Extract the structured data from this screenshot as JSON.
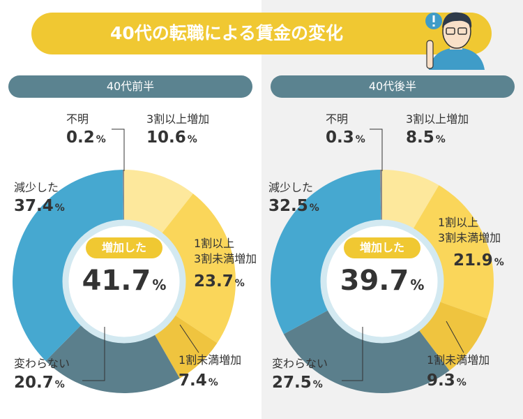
{
  "title": "40代の転職による賃金の変化",
  "chart_data": [
    {
      "type": "donut",
      "title": "40代前半",
      "categories": [
        "3割以上増加",
        "1割以上\n3割未満増加",
        "1割未満増加",
        "変わらない",
        "減少した",
        "不明"
      ],
      "values": [
        10.6,
        23.7,
        7.4,
        20.7,
        37.4,
        0.2
      ],
      "colors": [
        "#fde89c",
        "#fad65a",
        "#efc43f",
        "#5b7f8c",
        "#46a8d0",
        "#8a8a8a"
      ],
      "unit": "%",
      "center_label": "増加した",
      "center_value": 41.7
    },
    {
      "type": "donut",
      "title": "40代後半",
      "categories": [
        "3割以上増加",
        "1割以上\n3割未満増加",
        "1割未満増加",
        "変わらない",
        "減少した",
        "不明"
      ],
      "values": [
        8.5,
        21.9,
        9.3,
        27.5,
        32.5,
        0.3
      ],
      "colors": [
        "#fde89c",
        "#fad65a",
        "#efc43f",
        "#5b7f8c",
        "#46a8d0",
        "#8a8a8a"
      ],
      "unit": "%",
      "center_label": "増加した",
      "center_value": 39.7
    }
  ]
}
